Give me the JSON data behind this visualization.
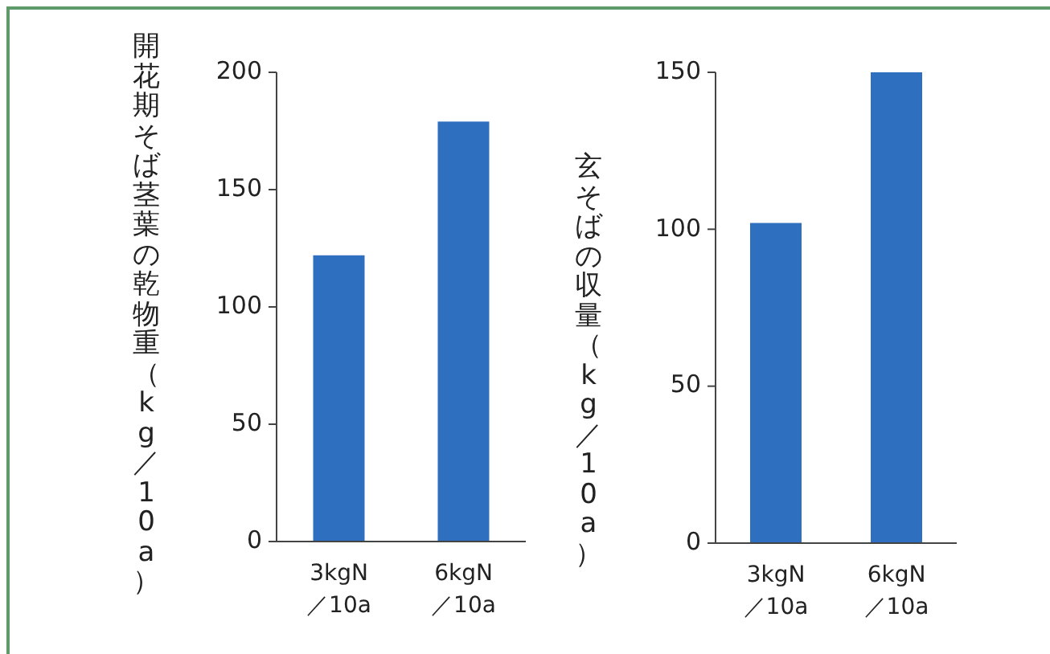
{
  "chart_data": [
    {
      "type": "bar",
      "ylabel": "開花期そば茎葉の乾物重（kg／10a）",
      "categories": [
        "3kgN\n／10a",
        "6kgN\n／10a"
      ],
      "values": [
        122,
        179
      ],
      "color": "#2f6fbf",
      "ylim": [
        0,
        200
      ],
      "yticks": [
        0,
        50,
        100,
        150,
        200
      ],
      "grid": false
    },
    {
      "type": "bar",
      "ylabel": "玄そばの収量（kg／10a）",
      "categories": [
        "3kgN\n／10a",
        "6kgN\n／10a"
      ],
      "values": [
        102,
        150
      ],
      "color": "#2f6fbf",
      "ylim": [
        0,
        150
      ],
      "yticks": [
        0,
        50,
        100,
        150
      ],
      "grid": false
    }
  ]
}
